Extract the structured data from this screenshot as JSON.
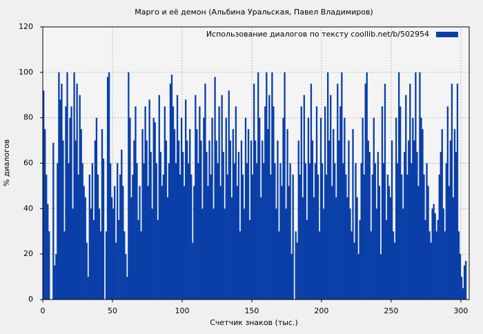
{
  "chart_data": {
    "type": "bar",
    "title": "Марго и её демон (Альбина Уральская, Павел Владимиров)",
    "x_label": "Счетчик знаков (тыс.)",
    "y_label": "% диалогов",
    "legend_position": "upper right",
    "grid": true,
    "xlim": [
      0,
      306
    ],
    "ylim": [
      0,
      120
    ],
    "xticks": [
      0,
      50,
      100,
      150,
      200,
      250,
      300
    ],
    "yticks": [
      0,
      20,
      40,
      60,
      80,
      100,
      120
    ],
    "series": [
      {
        "name": "Использование диалогов по тексту  coollib.net/b/502954",
        "color": "#0a3fa8",
        "x": [
          0,
          1,
          2,
          3,
          4,
          5,
          6,
          7,
          8,
          9,
          10,
          11,
          12,
          13,
          14,
          15,
          16,
          17,
          18,
          19,
          20,
          21,
          22,
          23,
          24,
          25,
          26,
          27,
          28,
          29,
          30,
          31,
          32,
          33,
          34,
          35,
          36,
          37,
          38,
          39,
          40,
          41,
          42,
          43,
          44,
          45,
          46,
          47,
          48,
          49,
          50,
          51,
          52,
          53,
          54,
          55,
          56,
          57,
          58,
          59,
          60,
          61,
          62,
          63,
          64,
          65,
          66,
          67,
          68,
          69,
          70,
          71,
          72,
          73,
          74,
          75,
          76,
          77,
          78,
          79,
          80,
          81,
          82,
          83,
          84,
          85,
          86,
          87,
          88,
          89,
          90,
          91,
          92,
          93,
          94,
          95,
          96,
          97,
          98,
          99,
          100,
          101,
          102,
          103,
          104,
          105,
          106,
          107,
          108,
          109,
          110,
          111,
          112,
          113,
          114,
          115,
          116,
          117,
          118,
          119,
          120,
          121,
          122,
          123,
          124,
          125,
          126,
          127,
          128,
          129,
          130,
          131,
          132,
          133,
          134,
          135,
          136,
          137,
          138,
          139,
          140,
          141,
          142,
          143,
          144,
          145,
          146,
          147,
          148,
          149,
          150,
          151,
          152,
          153,
          154,
          155,
          156,
          157,
          158,
          159,
          160,
          161,
          162,
          163,
          164,
          165,
          166,
          167,
          168,
          169,
          170,
          171,
          172,
          173,
          174,
          175,
          176,
          177,
          178,
          179,
          180,
          181,
          182,
          183,
          184,
          185,
          186,
          187,
          188,
          189,
          190,
          191,
          192,
          193,
          194,
          195,
          196,
          197,
          198,
          199,
          200,
          201,
          202,
          203,
          204,
          205,
          206,
          207,
          208,
          209,
          210,
          211,
          212,
          213,
          214,
          215,
          216,
          217,
          218,
          219,
          220,
          221,
          222,
          223,
          224,
          225,
          226,
          227,
          228,
          229,
          230,
          231,
          232,
          233,
          234,
          235,
          236,
          237,
          238,
          239,
          240,
          241,
          242,
          243,
          244,
          245,
          246,
          247,
          248,
          249,
          250,
          251,
          252,
          253,
          254,
          255,
          256,
          257,
          258,
          259,
          260,
          261,
          262,
          263,
          264,
          265,
          266,
          267,
          268,
          269,
          270,
          271,
          272,
          273,
          274,
          275,
          276,
          277,
          278,
          279,
          280,
          281,
          282,
          283,
          284,
          285,
          286,
          287,
          288,
          289,
          290,
          291,
          292,
          293,
          294,
          295,
          296,
          297,
          298,
          299,
          300,
          301,
          302,
          303
        ],
        "values": [
          92,
          75,
          55,
          42,
          30,
          0,
          0,
          69,
          15,
          20,
          60,
          100,
          88,
          95,
          70,
          30,
          85,
          100,
          60,
          80,
          85,
          40,
          100,
          70,
          95,
          55,
          90,
          75,
          60,
          50,
          45,
          25,
          10,
          55,
          40,
          60,
          35,
          70,
          80,
          55,
          40,
          30,
          75,
          62,
          0,
          30,
          98,
          100,
          60,
          45,
          40,
          50,
          25,
          60,
          35,
          55,
          66,
          50,
          30,
          20,
          10,
          100,
          80,
          45,
          55,
          70,
          85,
          60,
          35,
          50,
          30,
          75,
          60,
          85,
          70,
          50,
          88,
          65,
          40,
          80,
          78,
          60,
          35,
          90,
          65,
          50,
          55,
          85,
          70,
          45,
          60,
          95,
          99,
          85,
          75,
          60,
          90,
          70,
          55,
          80,
          65,
          50,
          88,
          70,
          60,
          75,
          55,
          25,
          50,
          90,
          75,
          60,
          85,
          70,
          40,
          80,
          95,
          65,
          50,
          70,
          55,
          80,
          40,
          98,
          70,
          60,
          85,
          50,
          90,
          65,
          40,
          80,
          55,
          92,
          70,
          45,
          75,
          60,
          85,
          50,
          65,
          30,
          70,
          55,
          40,
          80,
          60,
          75,
          35,
          70,
          55,
          95,
          70,
          60,
          100,
          80,
          45,
          70,
          60,
          85,
          100,
          75,
          90,
          55,
          100,
          85,
          60,
          40,
          70,
          30,
          60,
          50,
          80,
          100,
          40,
          75,
          50,
          60,
          20,
          55,
          0,
          30,
          25,
          70,
          55,
          85,
          45,
          90,
          60,
          35,
          80,
          60,
          95,
          70,
          45,
          60,
          85,
          55,
          30,
          80,
          60,
          40,
          85,
          55,
          100,
          70,
          90,
          50,
          75,
          60,
          45,
          95,
          70,
          85,
          100,
          60,
          80,
          55,
          45,
          70,
          40,
          30,
          75,
          25,
          60,
          45,
          20,
          35,
          60,
          80,
          55,
          95,
          100,
          70,
          65,
          30,
          55,
          80,
          60,
          40,
          65,
          50,
          20,
          85,
          60,
          95,
          35,
          55,
          50,
          45,
          70,
          30,
          25,
          80,
          60,
          100,
          85,
          55,
          40,
          65,
          90,
          55,
          70,
          95,
          60,
          80,
          70,
          100,
          65,
          50,
          100,
          80,
          75,
          55,
          35,
          60,
          50,
          30,
          25,
          40,
          42,
          38,
          30,
          35,
          55,
          65,
          75,
          40,
          30,
          60,
          85,
          50,
          70,
          95,
          45,
          75,
          65,
          95,
          30,
          20,
          10,
          5,
          15,
          17
        ]
      }
    ]
  }
}
